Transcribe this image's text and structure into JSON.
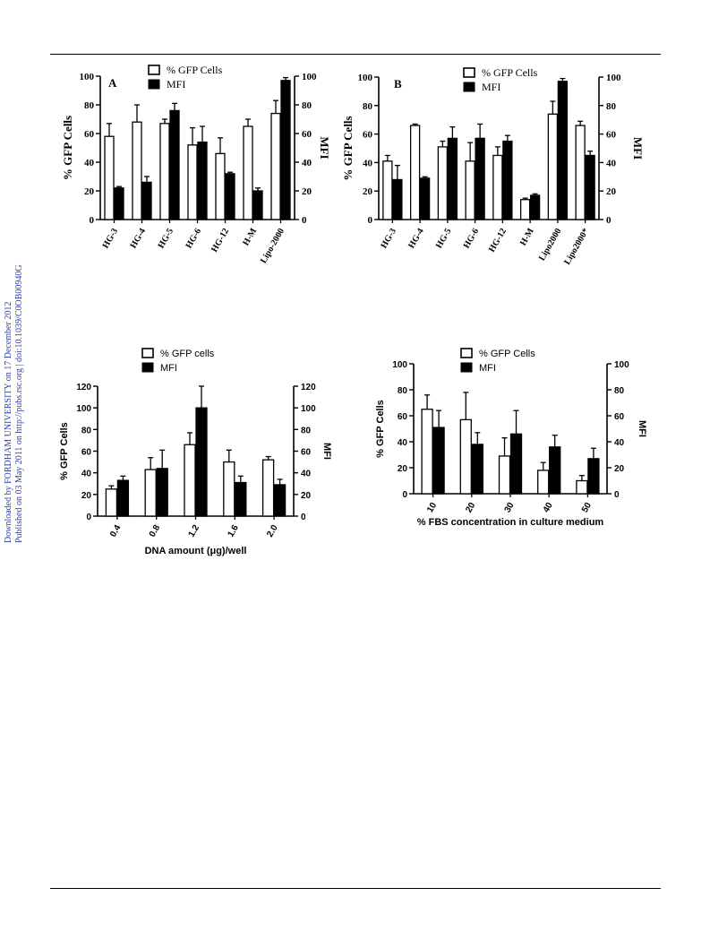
{
  "sidebar": {
    "line1": "Downloaded by FORDHAM UNIVERSITY on 17 December 2012",
    "line2": "Published on 03 May 2011 on http://pubs.rsc.org | doi:10.1039/C0OB00940G"
  },
  "colors": {
    "open_bar": "#ffffff",
    "filled_bar": "#000000",
    "side_text": "#2a3fb8"
  },
  "chart_data": [
    {
      "id": "A",
      "type": "bar",
      "panel_label": "A",
      "categories": [
        "HG-3",
        "HG-4",
        "HG-5",
        "HG-6",
        "HG-12",
        "H-M",
        "Lipo-2000"
      ],
      "series": [
        {
          "name": "% GFP Cells",
          "values": [
            58,
            68,
            67,
            52,
            46,
            65,
            74
          ],
          "errors": [
            9,
            12,
            3,
            12,
            11,
            5,
            9
          ]
        },
        {
          "name": "MFI",
          "values": [
            22,
            26,
            76,
            54,
            32,
            20,
            97
          ],
          "errors": [
            1,
            4,
            5,
            11,
            1,
            2,
            2
          ]
        }
      ],
      "ylabel": "% GFP Cells",
      "y2label": "MFI",
      "ylim": [
        0,
        100
      ],
      "yticks": [
        0,
        20,
        40,
        60,
        80,
        100
      ],
      "legend": "top-center"
    },
    {
      "id": "B",
      "type": "bar",
      "panel_label": "B",
      "categories": [
        "HG-3",
        "HG-4",
        "HG-5",
        "HG-6",
        "HG-12",
        "H-M",
        "Lipo2000",
        "Lipo2000*"
      ],
      "series": [
        {
          "name": "% GFP Cells",
          "values": [
            41,
            66,
            51,
            41,
            45,
            14,
            74,
            66
          ],
          "errors": [
            4,
            1,
            4,
            13,
            6,
            1,
            9,
            3
          ]
        },
        {
          "name": "MFI",
          "values": [
            28,
            29,
            57,
            57,
            55,
            17,
            97,
            45
          ],
          "errors": [
            10,
            1,
            8,
            10,
            4,
            1,
            2,
            3
          ]
        }
      ],
      "ylabel": "% GFP Cells",
      "y2label": "MFI",
      "ylim": [
        0,
        100
      ],
      "yticks": [
        0,
        20,
        40,
        60,
        80,
        100
      ],
      "legend": "top-center"
    },
    {
      "id": "C",
      "type": "bar",
      "categories": [
        "0.4",
        "0.8",
        "1.2",
        "1.6",
        "2.0"
      ],
      "series": [
        {
          "name": "% GFP  cells",
          "values": [
            25,
            43,
            66,
            50,
            52
          ],
          "errors": [
            3,
            11,
            11,
            11,
            3
          ]
        },
        {
          "name": "MFI",
          "values": [
            33,
            44,
            100,
            31,
            29
          ],
          "errors": [
            4,
            17,
            20,
            6,
            5
          ]
        }
      ],
      "xlabel": "DNA amount (μg)/well",
      "ylabel": "% GFP Cells",
      "y2label": "MFI",
      "ylim": [
        0,
        120
      ],
      "yticks": [
        0,
        20,
        40,
        60,
        80,
        100,
        120
      ],
      "legend": "top-left"
    },
    {
      "id": "D",
      "type": "bar",
      "categories": [
        "10",
        "20",
        "30",
        "40",
        "50"
      ],
      "series": [
        {
          "name": "% GFP Cells",
          "values": [
            65,
            57,
            29,
            18,
            10
          ],
          "errors": [
            11,
            21,
            14,
            6,
            4
          ]
        },
        {
          "name": "MFI",
          "values": [
            51,
            38,
            46,
            36,
            27
          ],
          "errors": [
            13,
            9,
            18,
            9,
            8
          ]
        }
      ],
      "xlabel": "% FBS concentration in culture medium",
      "ylabel": "% GFP Cells",
      "y2label": "MFI",
      "ylim": [
        0,
        100
      ],
      "yticks": [
        0,
        20,
        40,
        60,
        80,
        100
      ],
      "legend": "top-left"
    }
  ]
}
